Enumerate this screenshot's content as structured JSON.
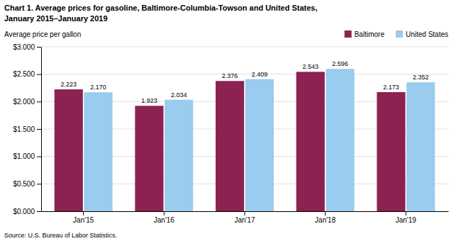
{
  "chart_data": {
    "type": "bar",
    "title": "Chart 1. Average prices for gasoline, Baltimore-Columbia-Towson  and United States,",
    "subtitle": "January 2015–January 2019",
    "ylabel": "Average price per gallon",
    "source": "Source: U.S. Bureau of Labor Statistics.",
    "categories": [
      "Jan'15",
      "Jan'16",
      "Jan'17",
      "Jan'18",
      "Jan'19"
    ],
    "series": [
      {
        "name": "Baltimore",
        "color": "#8B2252",
        "values": [
          2.223,
          1.923,
          2.376,
          2.543,
          2.173
        ],
        "value_labels": [
          "2.223",
          "1.923",
          "2.376",
          "2.543",
          "2.173"
        ]
      },
      {
        "name": "United States",
        "color": "#99CCEE",
        "values": [
          2.17,
          2.034,
          2.409,
          2.596,
          2.352
        ],
        "value_labels": [
          "2.170",
          "2.034",
          "2.409",
          "2.596",
          "2.352"
        ]
      }
    ],
    "ylim": [
      0,
      3.0
    ],
    "yticks": [
      {
        "value": 0.0,
        "label": "$0.000"
      },
      {
        "value": 0.5,
        "label": "$0.500"
      },
      {
        "value": 1.0,
        "label": "$1.000"
      },
      {
        "value": 1.5,
        "label": "$1.500"
      },
      {
        "value": 2.0,
        "label": "$2.000"
      },
      {
        "value": 2.5,
        "label": "$2.500"
      },
      {
        "value": 3.0,
        "label": "$3.000"
      }
    ],
    "grid": true,
    "legend": "top",
    "data_labels": true
  }
}
